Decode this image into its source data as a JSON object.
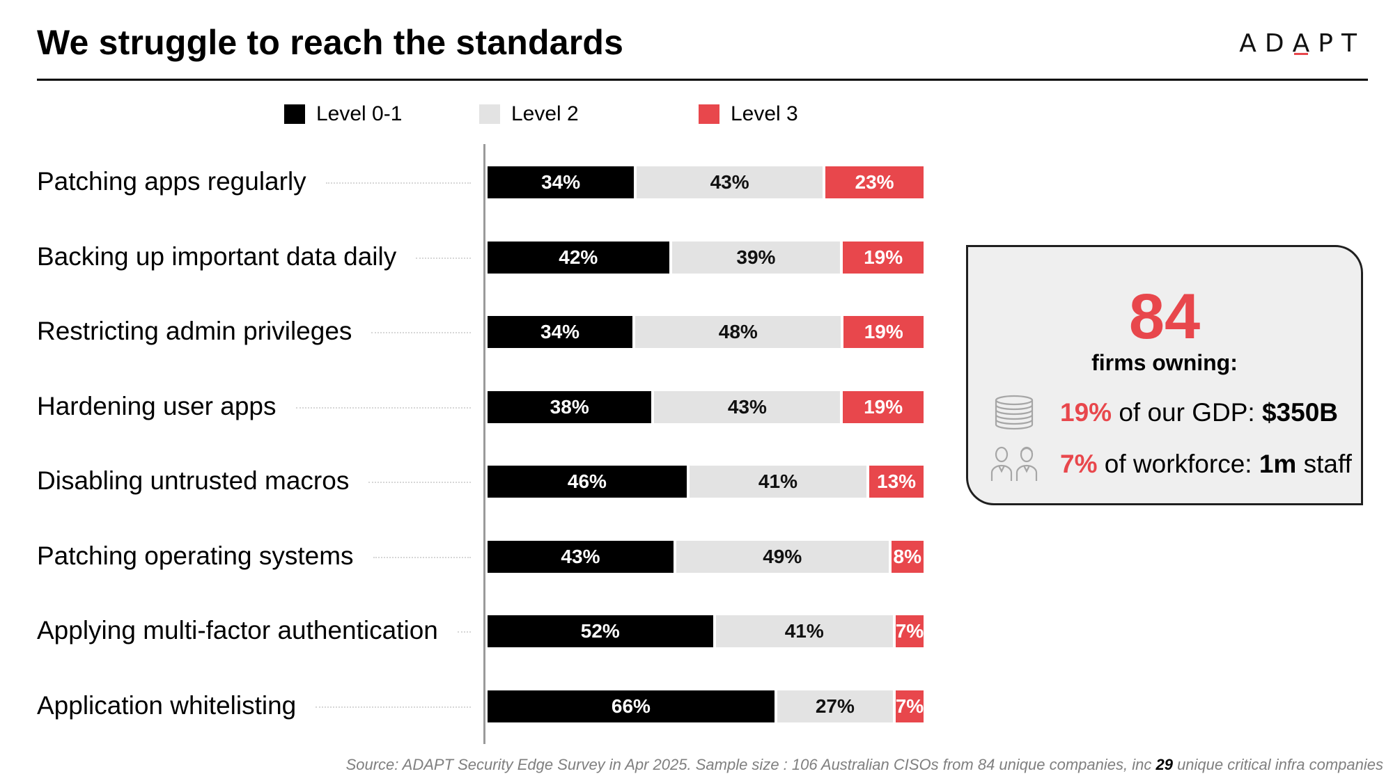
{
  "title": "We struggle to reach the standards",
  "logo": {
    "before": "AD",
    "accent_letter": "A",
    "after": "PT"
  },
  "colors": {
    "level_0_1": "#000000",
    "level_2": "#e3e3e3",
    "level_3": "#e8474c",
    "accent": "#e8474c"
  },
  "chart_data": {
    "type": "bar",
    "orientation": "horizontal",
    "stacked": true,
    "percent_stacked": true,
    "unit": "%",
    "legend_placement": "top",
    "grid": false,
    "categories": [
      "Patching apps regularly",
      "Backing up important data daily",
      "Restricting admin privileges",
      "Hardening user apps",
      "Disabling untrusted macros",
      "Patching operating systems",
      "Applying multi-factor authentication",
      "Application whitelisting"
    ],
    "series": [
      {
        "name": "Level 0-1",
        "color": "#000000",
        "values": [
          34,
          42,
          34,
          38,
          46,
          43,
          52,
          66
        ]
      },
      {
        "name": "Level 2",
        "color": "#e3e3e3",
        "values": [
          43,
          39,
          48,
          43,
          41,
          49,
          41,
          27
        ]
      },
      {
        "name": "Level 3",
        "color": "#e8474c",
        "values": [
          23,
          19,
          19,
          19,
          13,
          8,
          7,
          7
        ]
      }
    ]
  },
  "callout": {
    "number": "84",
    "caption": "firms owning:",
    "stats": [
      {
        "icon": "coins-icon",
        "pct": "19%",
        "text": " of our GDP: ",
        "value": "$350B",
        "suffix": ""
      },
      {
        "icon": "people-icon",
        "pct": "7%",
        "text": " of workforce: ",
        "value": "1m",
        "suffix": " staff"
      }
    ]
  },
  "source": {
    "before": "Source: ADAPT Security Edge Survey in Apr 2025. Sample size : 106 Australian CISOs from 84 unique companies, inc ",
    "highlight": "29",
    "after": " unique critical infra companies"
  }
}
